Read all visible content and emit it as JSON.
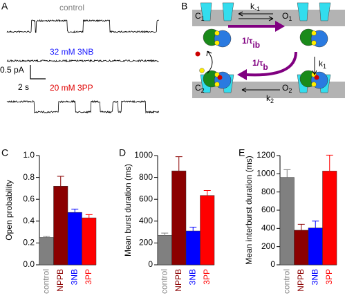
{
  "panels": [
    "A",
    "B",
    "C",
    "D",
    "E"
  ],
  "traces": {
    "control": "control",
    "nb": "32 mM 3NB",
    "pp": "20 mM 3PP",
    "scale_current": "0.5 pA",
    "scale_time": "2 s"
  },
  "scheme": {
    "states": [
      {
        "main": "C",
        "sub": "1"
      },
      {
        "main": "O",
        "sub": "1"
      },
      {
        "main": "C",
        "sub": "2"
      },
      {
        "main": "O",
        "sub": "2"
      }
    ],
    "rates": [
      {
        "main": "k",
        "sub": "-1"
      },
      {
        "main": "k",
        "sub": "1"
      },
      {
        "main": "k",
        "sub": "2"
      }
    ],
    "block_rates": [
      {
        "main": "1/τ",
        "sub": "ib"
      },
      {
        "main": "1/τ",
        "sub": "b"
      }
    ]
  },
  "chart_data": [
    {
      "type": "bar",
      "ylabel": "Open probability",
      "categories": [
        "control",
        "NPPB",
        "3NB",
        "3PP"
      ],
      "colors": [
        "#808080",
        "#8b0000",
        "#0000ff",
        "#ff0000"
      ],
      "values": [
        0.25,
        0.72,
        0.48,
        0.43
      ],
      "errors": [
        0.01,
        0.09,
        0.03,
        0.03
      ],
      "ylim": [
        0,
        1
      ],
      "yticks": [
        {
          "value": 0,
          "label": "0.0"
        },
        {
          "value": 0.2,
          "label": "0.2"
        },
        {
          "value": 0.4,
          "label": "0.4"
        },
        {
          "value": 0.6,
          "label": "0.6"
        },
        {
          "value": 0.8,
          "label": "0.8"
        },
        {
          "value": 1,
          "label": "1.0"
        }
      ]
    },
    {
      "type": "bar",
      "ylabel": "Mean burst duration (ms)",
      "categories": [
        "control",
        "NPPB",
        "3NB",
        "3PP"
      ],
      "colors": [
        "#808080",
        "#8b0000",
        "#0000ff",
        "#ff0000"
      ],
      "values": [
        270,
        860,
        310,
        635
      ],
      "errors": [
        20,
        130,
        35,
        45
      ],
      "ylim": [
        0,
        1000
      ],
      "yticks": [
        0,
        200,
        400,
        600,
        800,
        1000
      ]
    },
    {
      "type": "bar",
      "ylabel": "Mean interburst duration (ms)",
      "categories": [
        "control",
        "NPPB",
        "3NB",
        "3PP"
      ],
      "colors": [
        "#808080",
        "#8b0000",
        "#0000ff",
        "#ff0000"
      ],
      "values": [
        960,
        380,
        405,
        1030
      ],
      "errors": [
        85,
        65,
        75,
        175
      ],
      "ylim": [
        0,
        1200
      ],
      "yticks": [
        0,
        200,
        400,
        600,
        800,
        1000,
        1200
      ]
    }
  ]
}
